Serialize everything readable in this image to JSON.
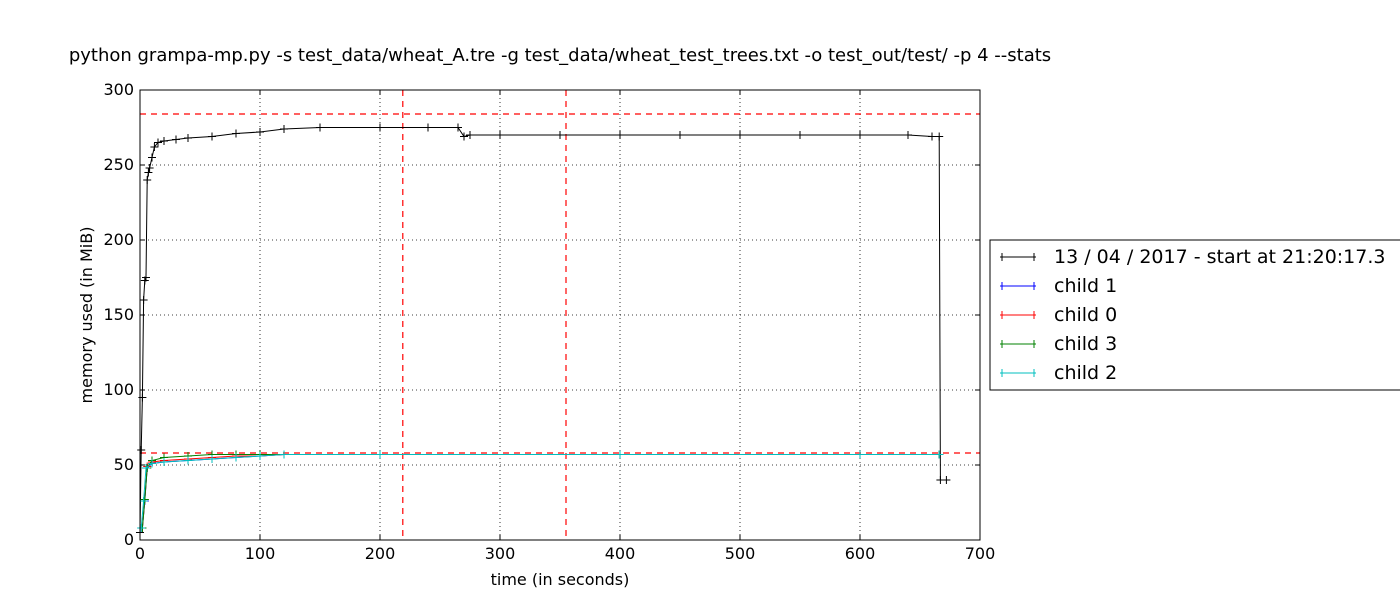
{
  "chart_data": {
    "type": "line",
    "title": "python grampa-mp.py -s test_data/wheat_A.tre -g test_data/wheat_test_trees.txt -o test_out/test/ -p 4 --stats",
    "xlabel": "time (in seconds)",
    "ylabel": "memory used (in MiB)",
    "xlim": [
      0,
      700
    ],
    "ylim": [
      0,
      300
    ],
    "x_ticks": [
      0,
      100,
      200,
      300,
      400,
      500,
      600,
      700
    ],
    "y_ticks": [
      0,
      50,
      100,
      150,
      200,
      250,
      300
    ],
    "grid": true,
    "legend_position": "right",
    "reference_lines": {
      "horizontal": [
        284,
        58
      ],
      "vertical": [
        219,
        355
      ],
      "color": "#ff0000",
      "style": "dashed"
    },
    "series": [
      {
        "name": "13 / 04 / 2017 - start at 21:20:17.3",
        "color": "#000000",
        "points": [
          [
            0,
            5
          ],
          [
            1,
            60
          ],
          [
            2,
            95
          ],
          [
            3,
            160
          ],
          [
            4,
            173
          ],
          [
            5,
            175
          ],
          [
            6,
            240
          ],
          [
            7,
            245
          ],
          [
            8,
            248
          ],
          [
            10,
            255
          ],
          [
            12,
            262
          ],
          [
            15,
            265
          ],
          [
            20,
            266
          ],
          [
            30,
            267
          ],
          [
            40,
            268
          ],
          [
            60,
            269
          ],
          [
            80,
            271
          ],
          [
            100,
            272
          ],
          [
            120,
            274
          ],
          [
            150,
            275
          ],
          [
            200,
            275
          ],
          [
            240,
            275
          ],
          [
            265,
            275
          ],
          [
            270,
            269
          ],
          [
            275,
            270
          ],
          [
            300,
            270
          ],
          [
            350,
            270
          ],
          [
            400,
            270
          ],
          [
            450,
            270
          ],
          [
            500,
            270
          ],
          [
            550,
            270
          ],
          [
            600,
            270
          ],
          [
            640,
            270
          ],
          [
            660,
            269
          ],
          [
            666,
            269
          ],
          [
            667,
            40
          ],
          [
            672,
            40
          ]
        ]
      },
      {
        "name": "child 1",
        "color": "#0000ff",
        "points": [
          [
            2,
            8
          ],
          [
            4,
            26
          ],
          [
            6,
            48
          ],
          [
            10,
            51
          ],
          [
            20,
            52
          ],
          [
            40,
            53
          ],
          [
            60,
            54
          ],
          [
            80,
            55
          ],
          [
            100,
            56
          ],
          [
            120,
            57
          ],
          [
            200,
            57
          ],
          [
            400,
            57
          ],
          [
            600,
            57
          ],
          [
            666,
            57
          ]
        ]
      },
      {
        "name": "child 0",
        "color": "#ff0000",
        "points": [
          [
            2,
            8
          ],
          [
            4,
            27
          ],
          [
            6,
            49
          ],
          [
            10,
            52
          ],
          [
            20,
            53
          ],
          [
            40,
            54
          ],
          [
            60,
            55
          ],
          [
            80,
            56
          ],
          [
            100,
            56
          ],
          [
            120,
            57
          ],
          [
            200,
            57
          ],
          [
            400,
            57
          ],
          [
            600,
            57
          ],
          [
            666,
            57
          ]
        ]
      },
      {
        "name": "child 3",
        "color": "#008000",
        "points": [
          [
            2,
            8
          ],
          [
            4,
            27
          ],
          [
            6,
            48
          ],
          [
            10,
            53
          ],
          [
            20,
            55
          ],
          [
            40,
            56
          ],
          [
            60,
            57
          ],
          [
            80,
            57
          ],
          [
            100,
            57
          ],
          [
            120,
            57
          ],
          [
            200,
            57
          ],
          [
            400,
            57
          ],
          [
            600,
            57
          ],
          [
            666,
            57
          ]
        ]
      },
      {
        "name": "child 2",
        "color": "#00bfbf",
        "points": [
          [
            1,
            8
          ],
          [
            3,
            26
          ],
          [
            5,
            48
          ],
          [
            10,
            51
          ],
          [
            20,
            52
          ],
          [
            40,
            53
          ],
          [
            60,
            54
          ],
          [
            80,
            55
          ],
          [
            100,
            56
          ],
          [
            120,
            57
          ],
          [
            200,
            57
          ],
          [
            400,
            57
          ],
          [
            600,
            57
          ],
          [
            666,
            57
          ]
        ]
      }
    ]
  }
}
